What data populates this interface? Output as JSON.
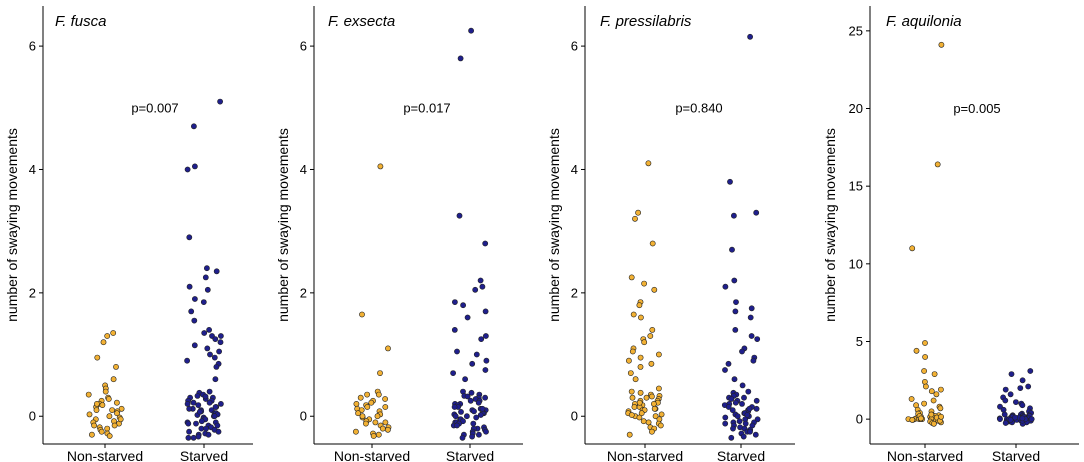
{
  "chart_data": [
    {
      "type": "scatter",
      "title": "F. fusca",
      "ylabel": "number of swaying movements",
      "categories": [
        "Non-starved",
        "Starved"
      ],
      "ylim": [
        -0.45,
        6.65
      ],
      "yticks": [
        0,
        2,
        4,
        6
      ],
      "p_value": "p=0.007",
      "series": [
        {
          "name": "Non-starved",
          "color": "#F2B134",
          "values": [
            1.35,
            1.3,
            1.2,
            0.95,
            0.8,
            0.6,
            0.5,
            0.45,
            0.4,
            0.35,
            0.3,
            0.28,
            0.25,
            0.22,
            0.2,
            0.18,
            0.15,
            0.12,
            0.1,
            0.08,
            0.05,
            0.03,
            0.0,
            -0.02,
            -0.05,
            -0.08,
            -0.1,
            -0.12,
            -0.15,
            -0.18,
            -0.2,
            -0.22,
            -0.25,
            -0.28,
            -0.3,
            -0.32,
            -0.05,
            0.1,
            0.2,
            -0.15
          ]
        },
        {
          "name": "Starved",
          "color": "#1F1F8C",
          "values": [
            5.1,
            4.7,
            4.05,
            4.0,
            2.9,
            2.4,
            2.35,
            2.25,
            2.1,
            2.05,
            1.9,
            1.85,
            1.7,
            1.55,
            1.4,
            1.35,
            1.3,
            1.3,
            1.25,
            1.2,
            1.15,
            1.1,
            1.05,
            1.0,
            0.95,
            0.9,
            0.85,
            0.8,
            0.6,
            0.4,
            0.38,
            0.35,
            0.33,
            0.3,
            0.3,
            0.28,
            0.25,
            0.25,
            0.22,
            0.2,
            0.2,
            0.18,
            0.15,
            0.15,
            0.12,
            0.1,
            0.1,
            0.08,
            0.05,
            0.05,
            0.03,
            0.0,
            0.0,
            -0.02,
            -0.05,
            -0.05,
            -0.08,
            -0.1,
            -0.1,
            -0.12,
            -0.15,
            -0.15,
            -0.18,
            -0.2,
            -0.2,
            -0.22,
            -0.25,
            -0.25,
            -0.28,
            -0.3,
            -0.3,
            -0.33,
            -0.35,
            -0.35,
            0.02,
            0.12,
            0.22,
            -0.12,
            0.32,
            0.07
          ]
        }
      ]
    },
    {
      "type": "scatter",
      "title": "F. exsecta",
      "ylabel": "number of swaying movements",
      "categories": [
        "Non-starved",
        "Starved"
      ],
      "ylim": [
        -0.45,
        6.65
      ],
      "yticks": [
        0,
        2,
        4,
        6
      ],
      "p_value": "p=0.017",
      "series": [
        {
          "name": "Non-starved",
          "color": "#F2B134",
          "values": [
            4.05,
            1.65,
            1.1,
            0.7,
            0.4,
            0.35,
            0.3,
            0.28,
            0.25,
            0.22,
            0.2,
            0.18,
            0.15,
            0.12,
            0.1,
            0.08,
            0.05,
            0.03,
            0.0,
            -0.02,
            -0.05,
            -0.08,
            -0.1,
            -0.12,
            -0.15,
            -0.18,
            -0.2,
            -0.22,
            -0.25,
            -0.28,
            -0.3,
            -0.32,
            0.35,
            0.0,
            -0.1,
            0.15
          ]
        },
        {
          "name": "Starved",
          "color": "#1F1F8C",
          "values": [
            6.25,
            5.8,
            3.25,
            2.8,
            2.2,
            2.1,
            2.05,
            1.85,
            1.8,
            1.7,
            1.6,
            1.4,
            1.3,
            1.25,
            1.05,
            1.0,
            0.9,
            0.85,
            0.75,
            0.7,
            0.6,
            0.4,
            0.38,
            0.35,
            0.33,
            0.3,
            0.3,
            0.28,
            0.25,
            0.25,
            0.22,
            0.2,
            0.2,
            0.18,
            0.15,
            0.15,
            0.12,
            0.1,
            0.1,
            0.08,
            0.05,
            0.05,
            0.03,
            0.0,
            0.0,
            -0.02,
            -0.05,
            -0.05,
            -0.08,
            -0.1,
            -0.1,
            -0.12,
            -0.15,
            -0.15,
            -0.18,
            -0.2,
            -0.2,
            -0.22,
            -0.25,
            -0.25,
            -0.28,
            -0.3,
            -0.3,
            -0.33,
            -0.35,
            0.02,
            0.12,
            -0.12,
            0.32,
            0.07
          ]
        }
      ]
    },
    {
      "type": "scatter",
      "title": "F. pressilabris",
      "ylabel": "number of swaying movements",
      "categories": [
        "Non-starved",
        "Starved"
      ],
      "ylim": [
        -0.45,
        6.65
      ],
      "yticks": [
        0,
        2,
        4,
        6
      ],
      "p_value": "p=0.840",
      "series": [
        {
          "name": "Non-starved",
          "color": "#F2B134",
          "values": [
            4.1,
            3.3,
            3.2,
            2.8,
            2.25,
            2.15,
            2.05,
            1.85,
            1.8,
            1.65,
            1.6,
            1.4,
            1.3,
            1.25,
            1.2,
            1.1,
            1.05,
            1.0,
            0.95,
            0.9,
            0.85,
            0.8,
            0.7,
            0.6,
            0.45,
            0.4,
            0.38,
            0.35,
            0.33,
            0.3,
            0.3,
            0.28,
            0.25,
            0.25,
            0.22,
            0.2,
            0.2,
            0.18,
            0.15,
            0.15,
            0.12,
            0.1,
            0.1,
            0.08,
            0.05,
            0.05,
            0.03,
            0.0,
            0.0,
            -0.02,
            -0.05,
            -0.08,
            -0.1,
            -0.12,
            -0.15,
            -0.18,
            -0.2,
            -0.25,
            -0.3,
            0.02,
            0.12,
            0.22,
            0.32
          ]
        },
        {
          "name": "Starved",
          "color": "#1F1F8C",
          "values": [
            6.15,
            3.8,
            3.3,
            3.25,
            2.7,
            2.2,
            2.1,
            1.85,
            1.75,
            1.7,
            1.6,
            1.4,
            1.3,
            1.25,
            1.1,
            1.05,
            0.95,
            0.9,
            0.85,
            0.75,
            0.6,
            0.5,
            0.4,
            0.38,
            0.35,
            0.33,
            0.3,
            0.3,
            0.28,
            0.25,
            0.25,
            0.22,
            0.2,
            0.2,
            0.18,
            0.15,
            0.15,
            0.12,
            0.1,
            0.1,
            0.08,
            0.05,
            0.05,
            0.03,
            0.0,
            0.0,
            -0.02,
            -0.05,
            -0.05,
            -0.08,
            -0.1,
            -0.1,
            -0.12,
            -0.15,
            -0.15,
            -0.18,
            -0.2,
            -0.2,
            -0.22,
            -0.25,
            -0.25,
            -0.28,
            -0.3,
            -0.33,
            -0.35,
            0.02,
            0.12,
            -0.12
          ]
        }
      ]
    },
    {
      "type": "scatter",
      "title": "F. aquilonia",
      "ylabel": "number of swaying movements",
      "categories": [
        "Non-starved",
        "Starved"
      ],
      "ylim": [
        -1.6,
        26.6
      ],
      "yticks": [
        0,
        5,
        10,
        15,
        20,
        25
      ],
      "p_value": "p=0.005",
      "series": [
        {
          "name": "Non-starved",
          "color": "#F2B134",
          "values": [
            24.1,
            16.4,
            11.0,
            4.9,
            4.4,
            4.0,
            3.1,
            2.9,
            2.4,
            2.1,
            1.9,
            1.8,
            1.6,
            1.3,
            1.2,
            1.0,
            0.9,
            0.8,
            0.7,
            0.6,
            0.5,
            0.4,
            0.35,
            0.3,
            0.25,
            0.2,
            0.2,
            0.15,
            0.15,
            0.1,
            0.1,
            0.05,
            0.05,
            0.0,
            0.0,
            0.0,
            0.0,
            0.0,
            0.0,
            -0.05,
            -0.05,
            -0.1,
            -0.1,
            -0.15,
            -0.2,
            -0.25,
            -0.3,
            0.3,
            0.0,
            0.1,
            -0.1,
            0.2,
            0.0,
            0.05,
            0.15
          ]
        },
        {
          "name": "Starved",
          "color": "#1F1F8C",
          "values": [
            3.1,
            2.9,
            2.5,
            2.1,
            2.0,
            1.9,
            1.6,
            1.4,
            1.2,
            1.1,
            1.0,
            0.9,
            0.8,
            0.7,
            0.6,
            0.5,
            0.4,
            0.35,
            0.3,
            0.3,
            0.25,
            0.25,
            0.2,
            0.2,
            0.15,
            0.15,
            0.1,
            0.1,
            0.1,
            0.05,
            0.05,
            0.05,
            0.0,
            0.0,
            0.0,
            0.0,
            0.0,
            0.0,
            0.0,
            0.0,
            -0.05,
            -0.05,
            -0.05,
            -0.1,
            -0.1,
            -0.1,
            -0.15,
            -0.15,
            -0.2,
            -0.2,
            -0.25,
            -0.3,
            0.0,
            0.1,
            -0.1,
            0.2,
            0.0,
            0.05,
            0.15,
            0.0,
            -0.05,
            0.1
          ]
        }
      ]
    }
  ]
}
